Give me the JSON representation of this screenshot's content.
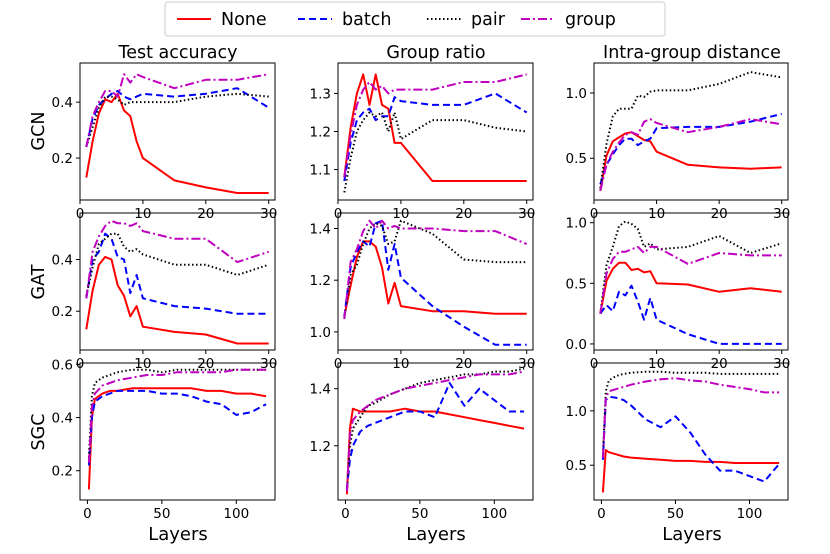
{
  "colors": {
    "none": "#ff0000",
    "batch": "#0000ff",
    "pair": "#000000",
    "group": "#bf00bf"
  },
  "legend": [
    {
      "key": "none",
      "label": "None",
      "dash": "none"
    },
    {
      "key": "batch",
      "label": "batch",
      "dash": "7,4"
    },
    {
      "key": "pair",
      "label": "pair",
      "dash": "1.5,2.5"
    },
    {
      "key": "group",
      "label": "group",
      "dash": "9,3,2,3"
    }
  ],
  "column_titles": [
    "Test accuracy",
    "Group ratio",
    "Intra-group distance"
  ],
  "row_labels": [
    "GCN",
    "GAT",
    "SGC"
  ],
  "xlabel": "Layers",
  "chart_data": [
    {
      "type": "line",
      "row": "GCN",
      "title": "Test accuracy",
      "xlim": [
        0,
        31
      ],
      "ylim": [
        0.05,
        0.54
      ],
      "xticks": [
        0,
        10,
        20,
        30
      ],
      "yticks": [
        0.2,
        0.4
      ],
      "ytick_labels": [
        "0.2",
        "0.4"
      ],
      "x": [
        1,
        2,
        3,
        4,
        5,
        6,
        7,
        8,
        9,
        10,
        15,
        20,
        25,
        30
      ],
      "series": [
        {
          "name": "None",
          "values": [
            0.13,
            0.26,
            0.36,
            0.41,
            0.4,
            0.43,
            0.37,
            0.35,
            0.26,
            0.2,
            0.12,
            0.095,
            0.075,
            0.075
          ]
        },
        {
          "name": "batch",
          "values": [
            0.24,
            0.34,
            0.39,
            0.41,
            0.43,
            0.44,
            0.42,
            0.41,
            0.42,
            0.43,
            0.42,
            0.43,
            0.45,
            0.38
          ]
        },
        {
          "name": "pair",
          "values": [
            0.24,
            0.31,
            0.38,
            0.42,
            0.42,
            0.41,
            0.39,
            0.4,
            0.4,
            0.4,
            0.4,
            0.42,
            0.43,
            0.42
          ]
        },
        {
          "name": "group",
          "values": [
            0.24,
            0.35,
            0.4,
            0.44,
            0.44,
            0.42,
            0.5,
            0.47,
            0.5,
            0.49,
            0.45,
            0.48,
            0.48,
            0.5
          ]
        }
      ]
    },
    {
      "type": "line",
      "row": "GCN",
      "title": "Group ratio",
      "xlim": [
        0,
        31
      ],
      "ylim": [
        1.02,
        1.38
      ],
      "xticks": [
        0,
        10,
        20,
        30
      ],
      "yticks": [
        1.1,
        1.2,
        1.3
      ],
      "ytick_labels": [
        "1.1",
        "1.2",
        "1.3"
      ],
      "x": [
        1,
        2,
        3,
        4,
        5,
        6,
        7,
        8,
        9,
        10,
        15,
        20,
        25,
        30
      ],
      "series": [
        {
          "name": "None",
          "values": [
            1.08,
            1.21,
            1.3,
            1.35,
            1.27,
            1.35,
            1.27,
            1.26,
            1.17,
            1.17,
            1.07,
            1.07,
            1.07,
            1.07
          ]
        },
        {
          "name": "batch",
          "values": [
            1.07,
            1.17,
            1.23,
            1.25,
            1.26,
            1.23,
            1.24,
            1.24,
            1.29,
            1.28,
            1.27,
            1.27,
            1.3,
            1.25
          ]
        },
        {
          "name": "pair",
          "values": [
            1.04,
            1.13,
            1.2,
            1.23,
            1.25,
            1.24,
            1.25,
            1.2,
            1.25,
            1.18,
            1.23,
            1.23,
            1.21,
            1.2
          ]
        },
        {
          "name": "group",
          "values": [
            1.08,
            1.19,
            1.27,
            1.31,
            1.33,
            1.31,
            1.32,
            1.3,
            1.31,
            1.31,
            1.31,
            1.33,
            1.33,
            1.35
          ]
        }
      ]
    },
    {
      "type": "line",
      "row": "GCN",
      "title": "Intra-group distance",
      "xlim": [
        0,
        31
      ],
      "ylim": [
        0.18,
        1.23
      ],
      "xticks": [
        0,
        10,
        20,
        30
      ],
      "yticks": [
        0.5,
        1.0
      ],
      "ytick_labels": [
        "0.5",
        "1.0"
      ],
      "x": [
        1,
        2,
        3,
        4,
        5,
        6,
        7,
        8,
        9,
        10,
        15,
        20,
        25,
        30
      ],
      "series": [
        {
          "name": "None",
          "values": [
            0.25,
            0.52,
            0.63,
            0.66,
            0.69,
            0.7,
            0.67,
            0.64,
            0.63,
            0.55,
            0.45,
            0.43,
            0.42,
            0.43
          ]
        },
        {
          "name": "batch",
          "values": [
            0.3,
            0.45,
            0.53,
            0.6,
            0.65,
            0.65,
            0.6,
            0.63,
            0.65,
            0.73,
            0.74,
            0.74,
            0.78,
            0.84
          ]
        },
        {
          "name": "pair",
          "values": [
            0.27,
            0.61,
            0.82,
            0.88,
            0.88,
            0.88,
            0.98,
            0.97,
            1.01,
            1.02,
            1.02,
            1.07,
            1.16,
            1.12
          ]
        },
        {
          "name": "group",
          "values": [
            0.25,
            0.45,
            0.55,
            0.62,
            0.68,
            0.7,
            0.68,
            0.78,
            0.8,
            0.77,
            0.7,
            0.74,
            0.8,
            0.76
          ]
        }
      ]
    },
    {
      "type": "line",
      "row": "GAT",
      "title": "Test accuracy",
      "xlim": [
        0,
        31
      ],
      "ylim": [
        0.05,
        0.58
      ],
      "xticks": [
        0,
        10,
        20,
        30
      ],
      "yticks": [
        0.2,
        0.4
      ],
      "ytick_labels": [
        "0.2",
        "0.4"
      ],
      "x": [
        1,
        2,
        3,
        4,
        5,
        6,
        7,
        8,
        9,
        10,
        15,
        20,
        25,
        30
      ],
      "series": [
        {
          "name": "None",
          "values": [
            0.13,
            0.28,
            0.38,
            0.41,
            0.4,
            0.3,
            0.26,
            0.18,
            0.22,
            0.14,
            0.12,
            0.11,
            0.075,
            0.075
          ]
        },
        {
          "name": "batch",
          "values": [
            0.25,
            0.4,
            0.43,
            0.5,
            0.48,
            0.41,
            0.4,
            0.27,
            0.34,
            0.25,
            0.22,
            0.21,
            0.19,
            0.19
          ]
        },
        {
          "name": "pair",
          "values": [
            0.26,
            0.37,
            0.46,
            0.48,
            0.5,
            0.5,
            0.45,
            0.43,
            0.44,
            0.42,
            0.38,
            0.38,
            0.34,
            0.38
          ]
        },
        {
          "name": "group",
          "values": [
            0.25,
            0.43,
            0.49,
            0.53,
            0.55,
            0.54,
            0.54,
            0.53,
            0.54,
            0.51,
            0.48,
            0.48,
            0.39,
            0.43
          ]
        }
      ]
    },
    {
      "type": "line",
      "row": "GAT",
      "title": "Group ratio",
      "xlim": [
        0,
        31
      ],
      "ylim": [
        0.93,
        1.46
      ],
      "xticks": [
        0,
        10,
        20,
        30
      ],
      "yticks": [
        1.0,
        1.2,
        1.4
      ],
      "ytick_labels": [
        "1.0",
        "1.2",
        "1.4"
      ],
      "x": [
        1,
        2,
        3,
        4,
        5,
        6,
        7,
        8,
        9,
        10,
        15,
        20,
        25,
        30
      ],
      "series": [
        {
          "name": "None",
          "values": [
            1.06,
            1.18,
            1.29,
            1.35,
            1.35,
            1.33,
            1.25,
            1.11,
            1.19,
            1.1,
            1.08,
            1.08,
            1.07,
            1.07
          ]
        },
        {
          "name": "batch",
          "values": [
            1.06,
            1.25,
            1.31,
            1.35,
            1.33,
            1.42,
            1.43,
            1.24,
            1.34,
            1.21,
            1.1,
            1.02,
            0.95,
            0.95
          ]
        },
        {
          "name": "pair",
          "values": [
            1.05,
            1.22,
            1.26,
            1.34,
            1.4,
            1.42,
            1.41,
            1.34,
            1.35,
            1.43,
            1.38,
            1.28,
            1.27,
            1.27
          ]
        },
        {
          "name": "group",
          "values": [
            1.05,
            1.27,
            1.32,
            1.39,
            1.43,
            1.4,
            1.43,
            1.4,
            1.41,
            1.4,
            1.4,
            1.39,
            1.39,
            1.34
          ]
        }
      ]
    },
    {
      "type": "line",
      "row": "GAT",
      "title": "Intra-group distance",
      "xlim": [
        0,
        31
      ],
      "ylim": [
        -0.05,
        1.08
      ],
      "xticks": [
        0,
        10,
        20,
        30
      ],
      "yticks": [
        0.0,
        0.5,
        1.0
      ],
      "ytick_labels": [
        "0.0",
        "0.5",
        "1.0"
      ],
      "x": [
        1,
        2,
        3,
        4,
        5,
        6,
        7,
        8,
        9,
        10,
        15,
        20,
        25,
        30
      ],
      "series": [
        {
          "name": "None",
          "values": [
            0.25,
            0.52,
            0.62,
            0.67,
            0.67,
            0.61,
            0.62,
            0.59,
            0.6,
            0.5,
            0.49,
            0.43,
            0.46,
            0.43
          ]
        },
        {
          "name": "batch",
          "values": [
            0.25,
            0.32,
            0.27,
            0.43,
            0.4,
            0.48,
            0.35,
            0.2,
            0.38,
            0.2,
            0.08,
            0.0,
            0.0,
            0.0
          ]
        },
        {
          "name": "pair",
          "values": [
            0.25,
            0.65,
            0.8,
            0.97,
            1.01,
            0.99,
            0.95,
            0.8,
            0.83,
            0.78,
            0.8,
            0.89,
            0.75,
            0.83
          ]
        },
        {
          "name": "group",
          "values": [
            0.25,
            0.58,
            0.7,
            0.76,
            0.76,
            0.78,
            0.8,
            0.75,
            0.8,
            0.8,
            0.66,
            0.75,
            0.73,
            0.73
          ]
        }
      ]
    },
    {
      "type": "line",
      "row": "SGC",
      "title": "Test accuracy",
      "xlim": [
        -5,
        126
      ],
      "ylim": [
        0.09,
        0.605
      ],
      "xticks": [
        0,
        50,
        100
      ],
      "yticks": [
        0.2,
        0.4,
        0.6
      ],
      "ytick_labels": [
        "0.2",
        "0.4",
        "0.6"
      ],
      "x": [
        1,
        3,
        5,
        10,
        15,
        20,
        30,
        40,
        50,
        60,
        70,
        80,
        90,
        100,
        110,
        120
      ],
      "series": [
        {
          "name": "None",
          "values": [
            0.13,
            0.4,
            0.47,
            0.49,
            0.5,
            0.5,
            0.51,
            0.51,
            0.51,
            0.51,
            0.51,
            0.5,
            0.5,
            0.49,
            0.49,
            0.48
          ]
        },
        {
          "name": "batch",
          "values": [
            0.22,
            0.4,
            0.46,
            0.48,
            0.49,
            0.5,
            0.5,
            0.5,
            0.49,
            0.49,
            0.48,
            0.46,
            0.45,
            0.41,
            0.42,
            0.45
          ]
        },
        {
          "name": "pair",
          "values": [
            0.25,
            0.48,
            0.53,
            0.55,
            0.56,
            0.57,
            0.58,
            0.58,
            0.57,
            0.58,
            0.58,
            0.58,
            0.58,
            0.58,
            0.58,
            0.58
          ]
        },
        {
          "name": "group",
          "values": [
            0.23,
            0.44,
            0.49,
            0.52,
            0.53,
            0.54,
            0.55,
            0.56,
            0.56,
            0.57,
            0.57,
            0.57,
            0.57,
            0.58,
            0.58,
            0.58
          ]
        }
      ]
    },
    {
      "type": "line",
      "row": "SGC",
      "title": "Group ratio",
      "xlim": [
        -5,
        126
      ],
      "ylim": [
        1.01,
        1.49
      ],
      "xticks": [
        0,
        50,
        100
      ],
      "yticks": [
        1.2,
        1.4
      ],
      "ytick_labels": [
        "1.2",
        "1.4"
      ],
      "x": [
        1,
        3,
        5,
        10,
        15,
        20,
        30,
        40,
        50,
        60,
        70,
        80,
        90,
        100,
        110,
        120
      ],
      "series": [
        {
          "name": "None",
          "values": [
            1.03,
            1.26,
            1.33,
            1.32,
            1.32,
            1.32,
            1.32,
            1.33,
            1.32,
            1.32,
            1.31,
            1.3,
            1.29,
            1.28,
            1.27,
            1.26
          ]
        },
        {
          "name": "batch",
          "values": [
            1.05,
            1.15,
            1.2,
            1.25,
            1.27,
            1.28,
            1.3,
            1.32,
            1.32,
            1.3,
            1.42,
            1.34,
            1.4,
            1.36,
            1.32,
            1.32
          ]
        },
        {
          "name": "pair",
          "values": [
            1.04,
            1.2,
            1.26,
            1.3,
            1.34,
            1.35,
            1.38,
            1.4,
            1.42,
            1.43,
            1.44,
            1.45,
            1.45,
            1.46,
            1.46,
            1.47
          ]
        },
        {
          "name": "group",
          "values": [
            1.04,
            1.24,
            1.29,
            1.32,
            1.34,
            1.36,
            1.38,
            1.4,
            1.41,
            1.42,
            1.43,
            1.44,
            1.45,
            1.45,
            1.45,
            1.46
          ]
        }
      ]
    },
    {
      "type": "line",
      "row": "SGC",
      "title": "Intra-group distance",
      "xlim": [
        -5,
        126
      ],
      "ylim": [
        0.18,
        1.44
      ],
      "xticks": [
        0,
        50,
        100
      ],
      "yticks": [
        0.5,
        1.0
      ],
      "ytick_labels": [
        "0.5",
        "1.0"
      ],
      "x": [
        1,
        3,
        5,
        10,
        15,
        20,
        30,
        40,
        50,
        60,
        70,
        80,
        90,
        100,
        110,
        120
      ],
      "series": [
        {
          "name": "None",
          "values": [
            0.25,
            0.64,
            0.62,
            0.6,
            0.58,
            0.57,
            0.56,
            0.55,
            0.54,
            0.54,
            0.53,
            0.53,
            0.52,
            0.52,
            0.52,
            0.52
          ]
        },
        {
          "name": "batch",
          "values": [
            0.55,
            1.1,
            1.13,
            1.12,
            1.1,
            1.05,
            0.92,
            0.85,
            0.95,
            0.8,
            0.6,
            0.45,
            0.45,
            0.4,
            0.35,
            0.51
          ]
        },
        {
          "name": "pair",
          "values": [
            0.6,
            1.18,
            1.28,
            1.32,
            1.34,
            1.35,
            1.36,
            1.36,
            1.35,
            1.35,
            1.35,
            1.34,
            1.34,
            1.34,
            1.34,
            1.34
          ]
        },
        {
          "name": "group",
          "values": [
            0.57,
            1.12,
            1.18,
            1.2,
            1.22,
            1.24,
            1.27,
            1.29,
            1.3,
            1.28,
            1.27,
            1.24,
            1.22,
            1.2,
            1.17,
            1.17
          ]
        }
      ]
    }
  ]
}
